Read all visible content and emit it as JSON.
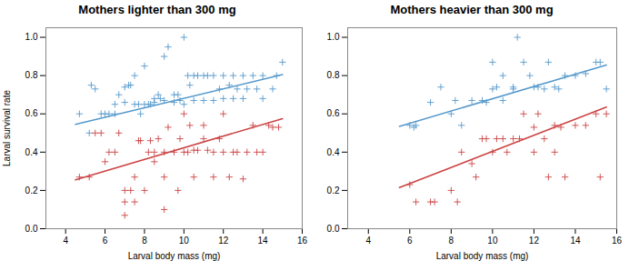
{
  "chart_data": [
    {
      "type": "scatter",
      "title": "Mothers lighter than 300 mg",
      "xlabel": "Larval body mass (mg)",
      "ylabel": "Larval survival rate",
      "xlim": [
        3,
        16
      ],
      "xticks": [
        4,
        6,
        8,
        10,
        12,
        14,
        16
      ],
      "ylim": [
        0.0,
        1.05
      ],
      "yticks": [
        {
          "value": 0,
          "label": "0.0"
        },
        0.2,
        0.4,
        0.6,
        0.8,
        {
          "value": 1,
          "label": "1.0"
        }
      ],
      "grid": false,
      "series": [
        {
          "type": "scatter",
          "color": "#5599cc",
          "marker": "plus",
          "x": [
            4.7,
            5.2,
            5.3,
            5.5,
            5.8,
            6.0,
            6.2,
            6.5,
            6.5,
            6.7,
            7.0,
            7.0,
            7.2,
            7.3,
            7.5,
            7.5,
            7.7,
            7.8,
            8.0,
            8.0,
            8.2,
            8.3,
            8.5,
            8.5,
            8.7,
            8.8,
            9.0,
            9.0,
            9.2,
            9.5,
            9.5,
            9.7,
            9.8,
            10.0,
            10.0,
            10.2,
            10.3,
            10.5,
            10.5,
            10.7,
            11.0,
            11.0,
            11.2,
            11.5,
            11.5,
            11.8,
            12.0,
            12.0,
            12.3,
            12.5,
            12.5,
            12.7,
            13.0,
            13.0,
            13.2,
            13.5,
            13.7,
            14.0,
            14.0,
            14.5,
            14.7,
            15.0
          ],
          "values": [
            0.6,
            0.5,
            0.75,
            0.73,
            0.6,
            0.6,
            0.6,
            0.6,
            0.65,
            0.7,
            0.66,
            0.74,
            0.75,
            0.75,
            0.8,
            0.65,
            0.65,
            0.6,
            0.85,
            0.65,
            0.65,
            0.65,
            0.66,
            0.68,
            0.7,
            0.68,
            0.67,
            0.9,
            0.95,
            0.66,
            0.7,
            0.7,
            0.67,
            1.0,
            0.65,
            0.8,
            0.75,
            0.8,
            0.67,
            0.8,
            0.8,
            0.67,
            0.8,
            0.8,
            0.67,
            0.73,
            0.8,
            0.68,
            0.75,
            0.8,
            0.68,
            0.73,
            0.8,
            0.68,
            0.73,
            0.8,
            0.73,
            0.8,
            0.68,
            0.73,
            0.8,
            0.87
          ]
        },
        {
          "type": "scatter",
          "color": "#cc4444",
          "marker": "plus",
          "x": [
            4.7,
            5.2,
            5.5,
            5.8,
            6.0,
            6.2,
            6.5,
            6.7,
            7.0,
            7.0,
            7.0,
            7.3,
            7.5,
            7.5,
            7.7,
            7.8,
            8.0,
            8.2,
            8.3,
            8.5,
            8.5,
            8.7,
            9.0,
            9.0,
            9.0,
            9.2,
            9.5,
            9.7,
            9.8,
            10.0,
            10.0,
            10.2,
            10.3,
            10.5,
            10.5,
            10.7,
            11.0,
            11.0,
            11.2,
            11.5,
            11.5,
            11.8,
            12.0,
            12.0,
            12.3,
            12.5,
            12.7,
            13.0,
            13.2,
            13.5,
            13.7,
            14.0,
            14.3,
            14.5,
            14.8
          ],
          "values": [
            0.27,
            0.27,
            0.5,
            0.5,
            0.35,
            0.4,
            0.4,
            0.5,
            0.14,
            0.07,
            0.2,
            0.2,
            0.14,
            0.27,
            0.46,
            0.46,
            0.2,
            0.4,
            0.46,
            0.4,
            0.35,
            0.47,
            0.1,
            0.27,
            0.4,
            0.53,
            0.4,
            0.2,
            0.47,
            0.4,
            0.6,
            0.4,
            0.54,
            0.41,
            0.27,
            0.41,
            0.47,
            0.54,
            0.41,
            0.27,
            0.4,
            0.47,
            0.4,
            0.6,
            0.27,
            0.4,
            0.4,
            0.26,
            0.4,
            0.54,
            0.4,
            0.4,
            0.54,
            0.53,
            0.53
          ]
        },
        {
          "type": "line",
          "color": "#5599cc",
          "line_style": "solid",
          "x": [
            4.5,
            15.0
          ],
          "values": [
            0.545,
            0.805
          ]
        },
        {
          "type": "line",
          "color": "#cc4444",
          "line_style": "solid",
          "x": [
            4.5,
            15.0
          ],
          "values": [
            0.255,
            0.575
          ]
        }
      ]
    },
    {
      "type": "scatter",
      "title": "Mothers heavier than 300 mg",
      "xlabel": "Larval body mass (mg)",
      "xlim": [
        3,
        16
      ],
      "xticks": [
        4,
        6,
        8,
        10,
        12,
        14,
        16
      ],
      "ylim": [
        0.0,
        1.05
      ],
      "yticks": [
        {
          "value": 0,
          "label": "0.0"
        },
        0.2,
        0.4,
        0.6,
        0.8,
        {
          "value": 1,
          "label": "1.0"
        }
      ],
      "grid": false,
      "series": [
        {
          "type": "scatter",
          "color": "#5599cc",
          "marker": "plus",
          "x": [
            6.0,
            6.2,
            6.3,
            7.0,
            7.5,
            8.0,
            8.2,
            8.5,
            9.0,
            9.5,
            9.7,
            10.0,
            10.0,
            10.2,
            10.5,
            10.5,
            11.0,
            11.0,
            11.2,
            11.5,
            11.8,
            12.0,
            12.2,
            12.5,
            12.7,
            13.0,
            13.2,
            13.5,
            14.0,
            14.5,
            15.0,
            15.2,
            15.5
          ],
          "values": [
            0.54,
            0.53,
            0.54,
            0.66,
            0.74,
            0.6,
            0.67,
            0.54,
            0.67,
            0.67,
            0.66,
            0.87,
            0.73,
            0.74,
            0.8,
            0.67,
            0.74,
            0.73,
            1.0,
            0.87,
            0.8,
            0.74,
            0.74,
            0.73,
            0.87,
            0.74,
            0.73,
            0.8,
            0.8,
            0.81,
            0.87,
            0.87,
            0.73
          ]
        },
        {
          "type": "scatter",
          "color": "#cc4444",
          "marker": "plus",
          "x": [
            6.0,
            6.3,
            7.0,
            7.2,
            8.0,
            8.3,
            8.5,
            9.0,
            9.2,
            9.5,
            9.7,
            10.0,
            10.2,
            10.5,
            10.7,
            11.0,
            11.3,
            11.5,
            12.0,
            12.0,
            12.2,
            12.5,
            12.7,
            13.0,
            13.0,
            13.3,
            13.5,
            14.0,
            14.5,
            15.0,
            15.2,
            15.5
          ],
          "values": [
            0.23,
            0.14,
            0.14,
            0.14,
            0.2,
            0.14,
            0.4,
            0.34,
            0.27,
            0.47,
            0.47,
            0.4,
            0.47,
            0.47,
            0.4,
            0.47,
            0.47,
            0.6,
            0.4,
            0.53,
            0.6,
            0.47,
            0.27,
            0.54,
            0.4,
            0.53,
            0.27,
            0.54,
            0.54,
            0.6,
            0.27,
            0.6
          ]
        },
        {
          "type": "line",
          "color": "#5599cc",
          "line_style": "solid",
          "x": [
            5.5,
            15.5
          ],
          "values": [
            0.535,
            0.855
          ]
        },
        {
          "type": "line",
          "color": "#cc4444",
          "line_style": "solid",
          "x": [
            5.5,
            15.5
          ],
          "values": [
            0.215,
            0.635
          ]
        }
      ]
    }
  ]
}
